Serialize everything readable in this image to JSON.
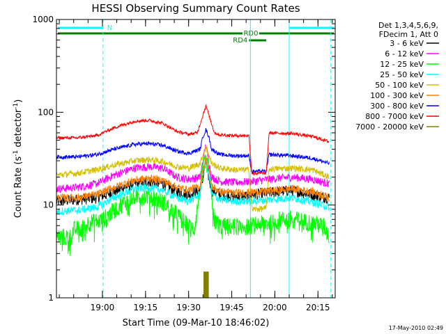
{
  "chart_data": {
    "type": "line",
    "title": "HESSI Observing Summary Count Rates",
    "xlabel": "Start Time (09-Mar-10 18:46:02)",
    "ylabel_parts": [
      "Count Rate (s",
      "-1",
      " detector",
      "-1",
      ")"
    ],
    "yscale": "log",
    "ylim": [
      1,
      1000
    ],
    "xlim_min": [
      -2,
      95
    ],
    "xticks_min": [
      14,
      29,
      44,
      59,
      74,
      89
    ],
    "xtick_labels": [
      "19:00",
      "19:15",
      "19:30",
      "19:45",
      "20:00",
      "20:15"
    ],
    "yticks": [
      1,
      10,
      100,
      1000
    ],
    "ytick_labels": [
      "1",
      "10",
      "100",
      "1000"
    ],
    "footer_date": "17-May-2010 02:49",
    "legend_header": [
      "Det 1,3,4,5,6,9,",
      "FDecim 1, Att 0"
    ],
    "series": [
      {
        "name": "3 - 6 keV",
        "color": "#000000",
        "anchors": [
          [
            -2,
            11
          ],
          [
            5,
            11.5
          ],
          [
            12,
            12
          ],
          [
            18,
            14
          ],
          [
            25,
            17
          ],
          [
            30,
            18
          ],
          [
            35,
            17
          ],
          [
            40,
            14
          ],
          [
            44,
            13
          ],
          [
            48,
            14.5
          ],
          [
            49,
            20
          ],
          [
            50,
            30
          ],
          [
            51,
            20
          ],
          [
            52,
            14.5
          ],
          [
            55,
            13
          ],
          [
            60,
            12.5
          ],
          [
            65,
            12.5
          ],
          [
            66,
            13
          ],
          [
            75,
            14
          ],
          [
            80,
            14.5
          ],
          [
            87,
            13
          ],
          [
            93,
            12
          ]
        ]
      },
      {
        "name": "6 - 12 keV",
        "color": "#ff00ff",
        "anchors": [
          [
            -2,
            15
          ],
          [
            5,
            15.5
          ],
          [
            12,
            17
          ],
          [
            18,
            21
          ],
          [
            25,
            25
          ],
          [
            30,
            26
          ],
          [
            35,
            25
          ],
          [
            40,
            20
          ],
          [
            44,
            19
          ],
          [
            48,
            20
          ],
          [
            49,
            30
          ],
          [
            50,
            45
          ],
          [
            51,
            30
          ],
          [
            52,
            20
          ],
          [
            55,
            18
          ],
          [
            60,
            17.5
          ],
          [
            66,
            18
          ],
          [
            75,
            19.5
          ],
          [
            80,
            20
          ],
          [
            87,
            19
          ],
          [
            93,
            17
          ]
        ]
      },
      {
        "name": "12 - 25 keV",
        "color": "#00ff00",
        "anchors": [
          [
            -2,
            4.6
          ],
          [
            3,
            4.6
          ],
          [
            4,
            5.5
          ],
          [
            8,
            5.8
          ],
          [
            9,
            6.5
          ],
          [
            14,
            7
          ],
          [
            20,
            10
          ],
          [
            25,
            12.5
          ],
          [
            30,
            12.8
          ],
          [
            35,
            11
          ],
          [
            40,
            8
          ],
          [
            44,
            6
          ],
          [
            46,
            5.5
          ],
          [
            48,
            15
          ],
          [
            49,
            26
          ],
          [
            50,
            30
          ],
          [
            51,
            25
          ],
          [
            52,
            12
          ],
          [
            53,
            7
          ],
          [
            55,
            6
          ],
          [
            60,
            6
          ],
          [
            65,
            6
          ],
          [
            67,
            6.2
          ],
          [
            73,
            6.5
          ],
          [
            75,
            7
          ],
          [
            80,
            7.2
          ],
          [
            87,
            6.5
          ],
          [
            91,
            6
          ],
          [
            93,
            4.6
          ]
        ]
      },
      {
        "name": "25 - 50 keV",
        "color": "#00ffff",
        "anchors": [
          [
            -2,
            8.5
          ],
          [
            5,
            8.8
          ],
          [
            12,
            9.5
          ],
          [
            18,
            12
          ],
          [
            25,
            15
          ],
          [
            30,
            15.5
          ],
          [
            35,
            14.5
          ],
          [
            40,
            12
          ],
          [
            44,
            11
          ],
          [
            48,
            13
          ],
          [
            49,
            22
          ],
          [
            50,
            32
          ],
          [
            51,
            22
          ],
          [
            52,
            13
          ],
          [
            55,
            11.5
          ],
          [
            60,
            11
          ],
          [
            66,
            11
          ],
          [
            73,
            11.5
          ],
          [
            80,
            12
          ],
          [
            87,
            10.8
          ],
          [
            93,
            9.5
          ]
        ]
      },
      {
        "name": "50 - 100 keV",
        "color": "#d4c000",
        "anchors": [
          [
            -2,
            21
          ],
          [
            5,
            22
          ],
          [
            12,
            24
          ],
          [
            18,
            27
          ],
          [
            25,
            30
          ],
          [
            30,
            31
          ],
          [
            35,
            29.5
          ],
          [
            40,
            26
          ],
          [
            44,
            25
          ],
          [
            48,
            28
          ],
          [
            49,
            35
          ],
          [
            50,
            42
          ],
          [
            51,
            35
          ],
          [
            52,
            28
          ],
          [
            55,
            25
          ],
          [
            60,
            24
          ],
          [
            65,
            24
          ],
          [
            66,
            9
          ],
          [
            71,
            9.2
          ],
          [
            72,
            24.5
          ],
          [
            80,
            25
          ],
          [
            87,
            24
          ],
          [
            93,
            20
          ]
        ]
      },
      {
        "name": "100 - 300 keV",
        "color": "#ff7f00",
        "anchors": [
          [
            -2,
            12
          ],
          [
            5,
            12
          ],
          [
            12,
            13
          ],
          [
            18,
            15.5
          ],
          [
            25,
            18.5
          ],
          [
            30,
            19.5
          ],
          [
            35,
            18.5
          ],
          [
            40,
            15.5
          ],
          [
            44,
            14.5
          ],
          [
            48,
            16
          ],
          [
            49,
            24
          ],
          [
            50,
            32
          ],
          [
            51,
            24
          ],
          [
            52,
            16
          ],
          [
            55,
            14
          ],
          [
            60,
            13.5
          ],
          [
            66,
            13.7
          ],
          [
            75,
            14.5
          ],
          [
            80,
            15
          ],
          [
            87,
            14
          ],
          [
            93,
            12
          ]
        ]
      },
      {
        "name": "300 - 800 keV",
        "color": "#0000ff",
        "anchors": [
          [
            -2,
            33
          ],
          [
            5,
            33
          ],
          [
            12,
            35
          ],
          [
            18,
            40
          ],
          [
            25,
            45
          ],
          [
            30,
            46
          ],
          [
            35,
            44
          ],
          [
            40,
            38
          ],
          [
            44,
            36
          ],
          [
            48,
            40
          ],
          [
            49,
            55
          ],
          [
            50,
            65
          ],
          [
            51,
            55
          ],
          [
            52,
            40
          ],
          [
            55,
            35
          ],
          [
            60,
            34
          ],
          [
            65,
            34
          ],
          [
            66,
            23
          ],
          [
            71,
            23
          ],
          [
            72,
            35
          ],
          [
            80,
            34
          ],
          [
            87,
            32
          ],
          [
            93,
            28
          ]
        ]
      },
      {
        "name": "800 - 7000 keV",
        "color": "#ff0000",
        "anchors": [
          [
            -2,
            53
          ],
          [
            5,
            53
          ],
          [
            12,
            56
          ],
          [
            18,
            68
          ],
          [
            25,
            80
          ],
          [
            30,
            82
          ],
          [
            35,
            76
          ],
          [
            40,
            62
          ],
          [
            44,
            58
          ],
          [
            47,
            60
          ],
          [
            48,
            75
          ],
          [
            50,
            118
          ],
          [
            52,
            75
          ],
          [
            53,
            60
          ],
          [
            55,
            57
          ],
          [
            60,
            56
          ],
          [
            65,
            56
          ],
          [
            66,
            22
          ],
          [
            71,
            22
          ],
          [
            72,
            60
          ],
          [
            80,
            59
          ],
          [
            87,
            55
          ],
          [
            93,
            48
          ]
        ]
      },
      {
        "name": "7000 - 20000 keV",
        "color": "#808000",
        "anchors": [
          [
            49.3,
            1
          ],
          [
            49.3,
            1.9
          ],
          [
            50.9,
            1.9
          ],
          [
            50.9,
            1
          ]
        ]
      }
    ],
    "flags": [
      {
        "label": "N",
        "color": "#00ffff",
        "segments": [
          [
            -2,
            14.2
          ],
          [
            79,
            95
          ]
        ],
        "level": 1
      },
      {
        "label": "RD0",
        "color": "#008000",
        "segments": [
          [
            -2,
            95
          ]
        ],
        "level": 2
      },
      {
        "label": "RD4",
        "color": "#008000",
        "segments": [
          [
            65,
            71
          ]
        ],
        "level": 3
      }
    ],
    "vlines": [
      {
        "x": 14.2,
        "color": "#00ffff",
        "style": "dashed"
      },
      {
        "x": 65.5,
        "color": "#00ffff",
        "style": "solid"
      },
      {
        "x": 79,
        "color": "#00ffff",
        "style": "solid"
      },
      {
        "x": 93.5,
        "color": "#00ffff",
        "style": "dashed"
      }
    ],
    "legend": "right"
  }
}
